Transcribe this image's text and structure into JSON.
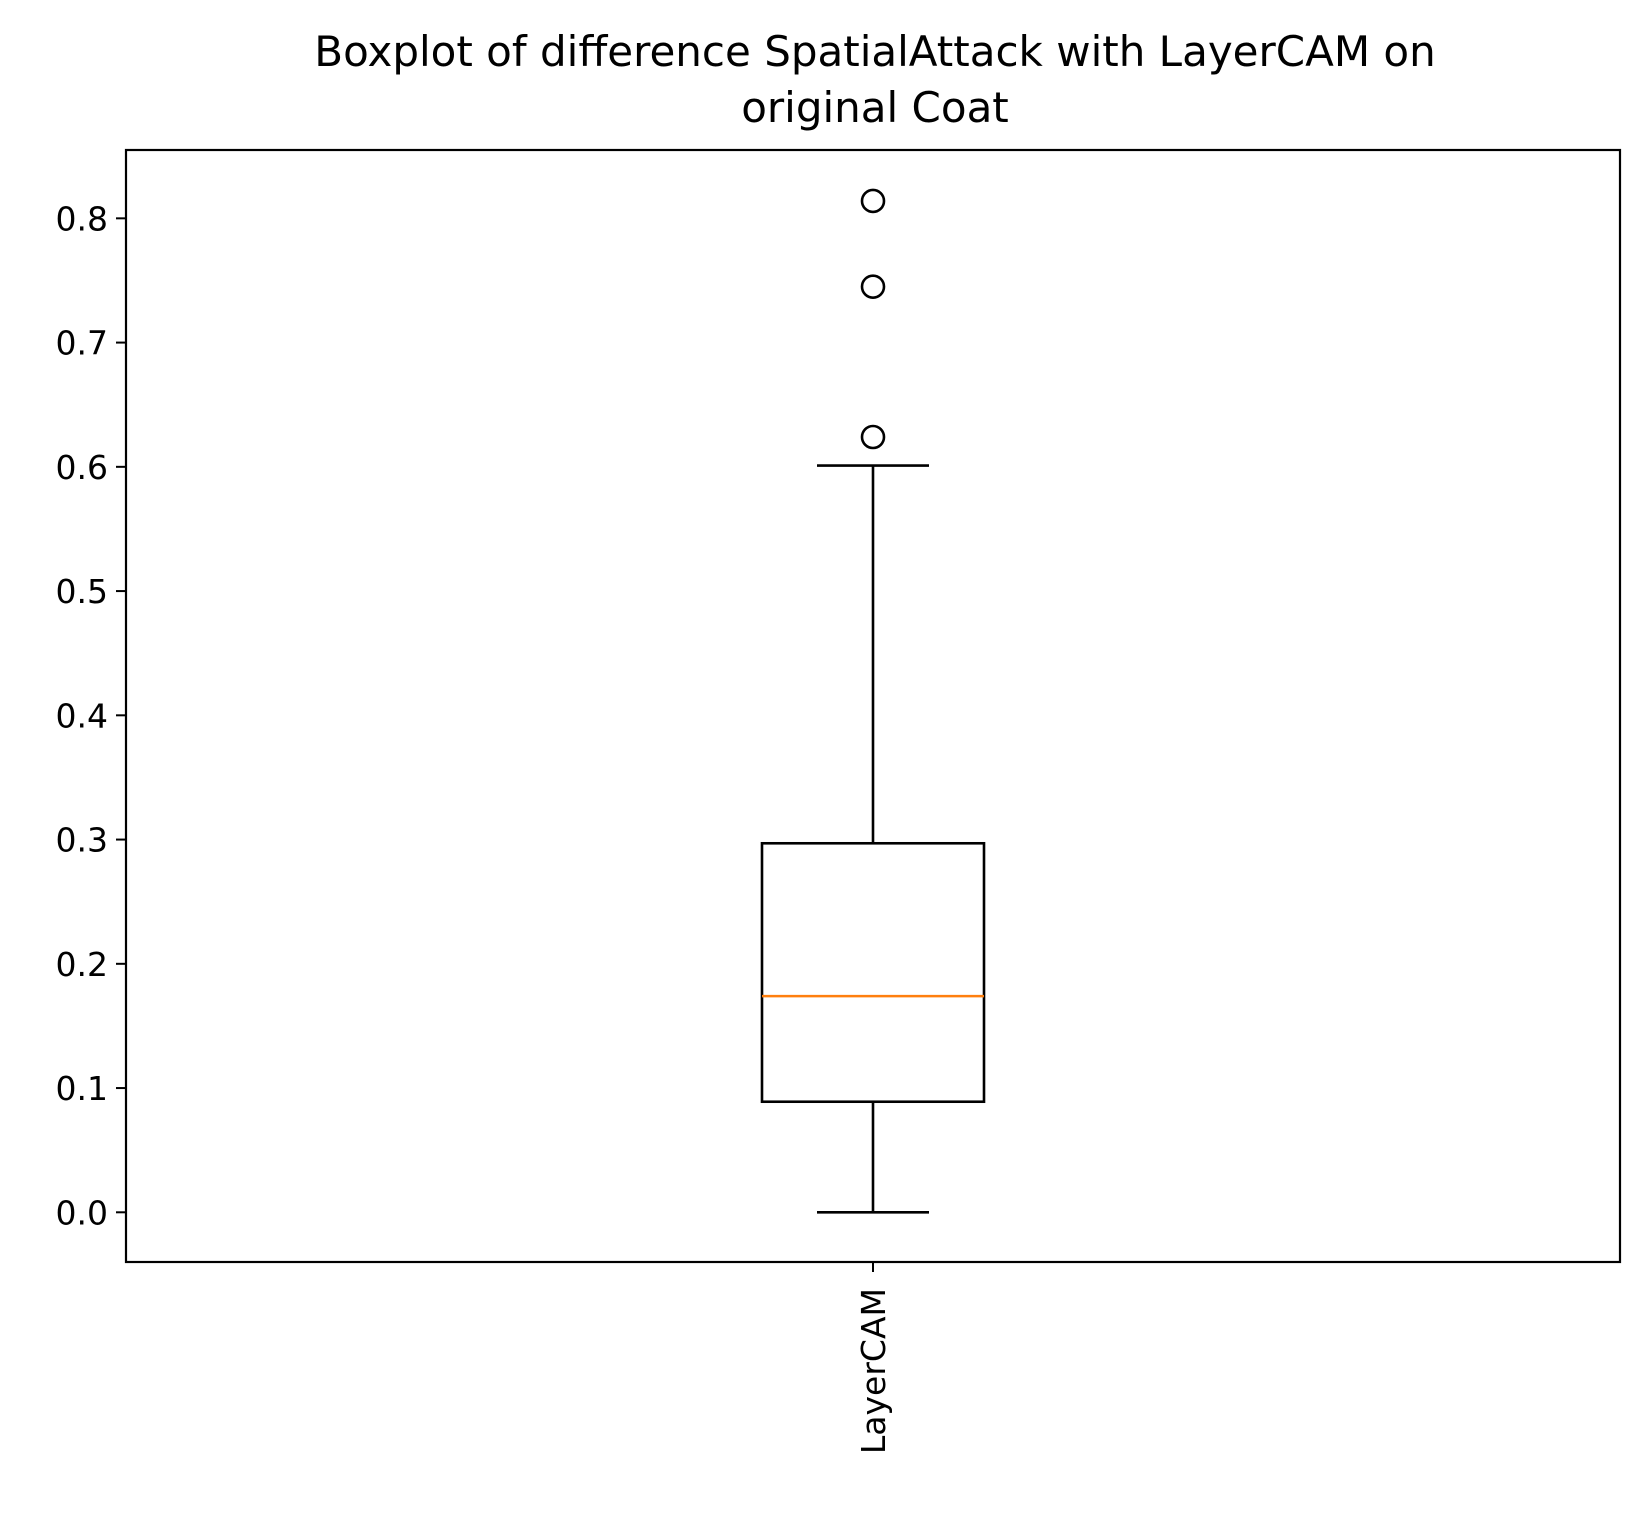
{
  "chart_data": {
    "type": "box",
    "title_lines": [
      "Boxplot of difference SpatialAttack with LayerCAM on",
      "original Coat"
    ],
    "xlabel": "",
    "ylabel": "",
    "ylim": [
      -0.04,
      0.855
    ],
    "yticks": [
      0.0,
      0.1,
      0.2,
      0.3,
      0.4,
      0.5,
      0.6,
      0.7,
      0.8
    ],
    "ytick_labels": [
      "0.0",
      "0.1",
      "0.2",
      "0.3",
      "0.4",
      "0.5",
      "0.6",
      "0.7",
      "0.8"
    ],
    "categories": [
      "LayerCAM"
    ],
    "boxes": [
      {
        "category": "LayerCAM",
        "whisker_low": 0.0,
        "q1": 0.089,
        "median": 0.174,
        "q3": 0.297,
        "whisker_high": 0.601,
        "outliers": [
          0.624,
          0.745,
          0.814
        ]
      }
    ],
    "grid": false,
    "legend": "none",
    "colors": {
      "box": "#000000",
      "median": "#ff7f0e",
      "outlier": "#000000"
    }
  }
}
